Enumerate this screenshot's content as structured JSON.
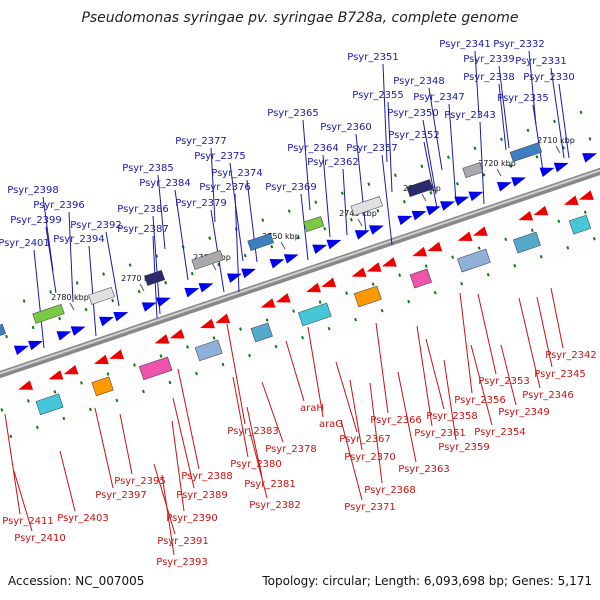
{
  "title": "Pseudomonas syringae pv. syringae B728a, complete genome",
  "footer": {
    "accession": "Accession: NC_007005",
    "summary": "Topology: circular; Length: 6,093,698 bp; Genes: 5,171"
  },
  "colors": {
    "forward": "#1a1aa6",
    "reverse": "#cc1111",
    "forward_arrow": "#0000ee",
    "reverse_arrow": "#ee0000",
    "backbone": "#888888",
    "tick": "#117711"
  },
  "ticks": [
    "2710 kbp",
    "2720 kbp",
    "2730 kbp",
    "2740 kbp",
    "2750 kbp",
    "2760 kbp",
    "2770 kbp",
    "2780 kbp"
  ],
  "forward_genes": [
    "Psyr_2341",
    "Psyr_2332",
    "Psyr_2339",
    "Psyr_2331",
    "Psyr_2351",
    "Psyr_2338",
    "Psyr_2330",
    "Psyr_2348",
    "Psyr_2355",
    "Psyr_2347",
    "Psyr_2335",
    "Psyr_2350",
    "Psyr_2343",
    "Psyr_2365",
    "Psyr_2360",
    "Psyr_2352",
    "Psyr_2377",
    "Psyr_2364",
    "Psyr_2357",
    "Psyr_2375",
    "Psyr_2362",
    "Psyr_2385",
    "Psyr_2374",
    "Psyr_2384",
    "Psyr_2376",
    "Psyr_2369",
    "Psyr_2398",
    "Psyr_2379",
    "Psyr_2396",
    "Psyr_2386",
    "Psyr_2399",
    "Psyr_2392",
    "Psyr_2387",
    "Psyr_2394",
    "Psyr_2401"
  ],
  "reverse_genes": [
    "Psyr_2342",
    "Psyr_2345",
    "Psyr_2353",
    "Psyr_2346",
    "Psyr_2356",
    "Psyr_2349",
    "Psyr_2358",
    "Psyr_2354",
    "Psyr_2366",
    "Psyr_2361",
    "araH",
    "Psyr_2367",
    "Psyr_2359",
    "araG",
    "Psyr_2383",
    "Psyr_2378",
    "Psyr_2370",
    "Psyr_2380",
    "Psyr_2363",
    "Psyr_2388",
    "Psyr_2395",
    "Psyr_2381",
    "Psyr_2397",
    "Psyr_2389",
    "Psyr_2368",
    "Psyr_2403",
    "Psyr_2382",
    "Psyr_2371",
    "Psyr_2390",
    "Psyr_2411",
    "Psyr_2410",
    "Psyr_2391",
    "Psyr_2393"
  ]
}
